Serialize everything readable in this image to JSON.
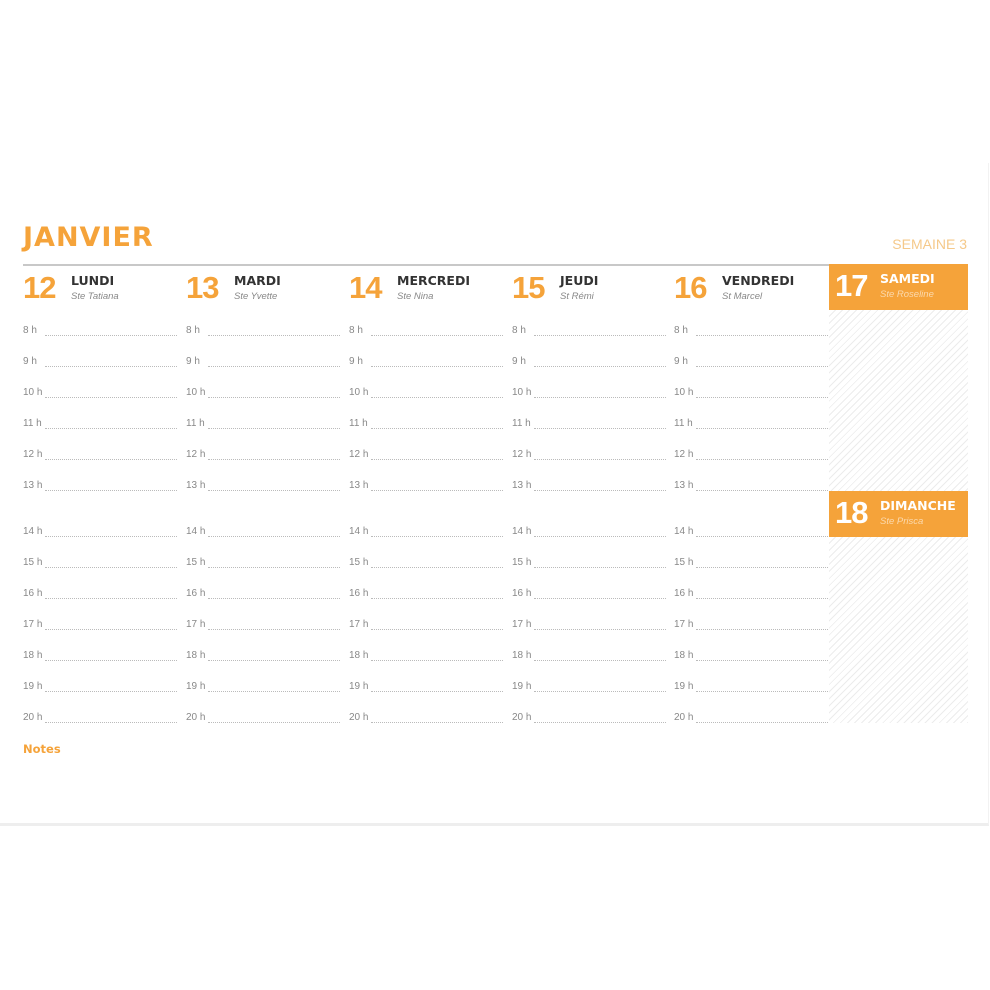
{
  "month": "JANVIER",
  "week": "SEMAINE 3",
  "weekdays": [
    {
      "num": "12",
      "name": "LUNDI",
      "saint": "Ste Tatiana"
    },
    {
      "num": "13",
      "name": "MARDI",
      "saint": "Ste Yvette"
    },
    {
      "num": "14",
      "name": "MERCREDI",
      "saint": "Ste Nina"
    },
    {
      "num": "15",
      "name": "JEUDI",
      "saint": "St Rémi"
    },
    {
      "num": "16",
      "name": "VENDREDI",
      "saint": "St Marcel"
    }
  ],
  "weekend": [
    {
      "num": "17",
      "name": "SAMEDI",
      "saint": "Ste Roseline"
    },
    {
      "num": "18",
      "name": "DIMANCHE",
      "saint": "Ste Prisca"
    }
  ],
  "hours": [
    "8 h",
    "9 h",
    "10 h",
    "11 h",
    "12 h",
    "13 h",
    "14 h",
    "15 h",
    "16 h",
    "17 h",
    "18 h",
    "19 h",
    "20 h"
  ],
  "notes_label": "Notes",
  "accent": "#f5a33a"
}
